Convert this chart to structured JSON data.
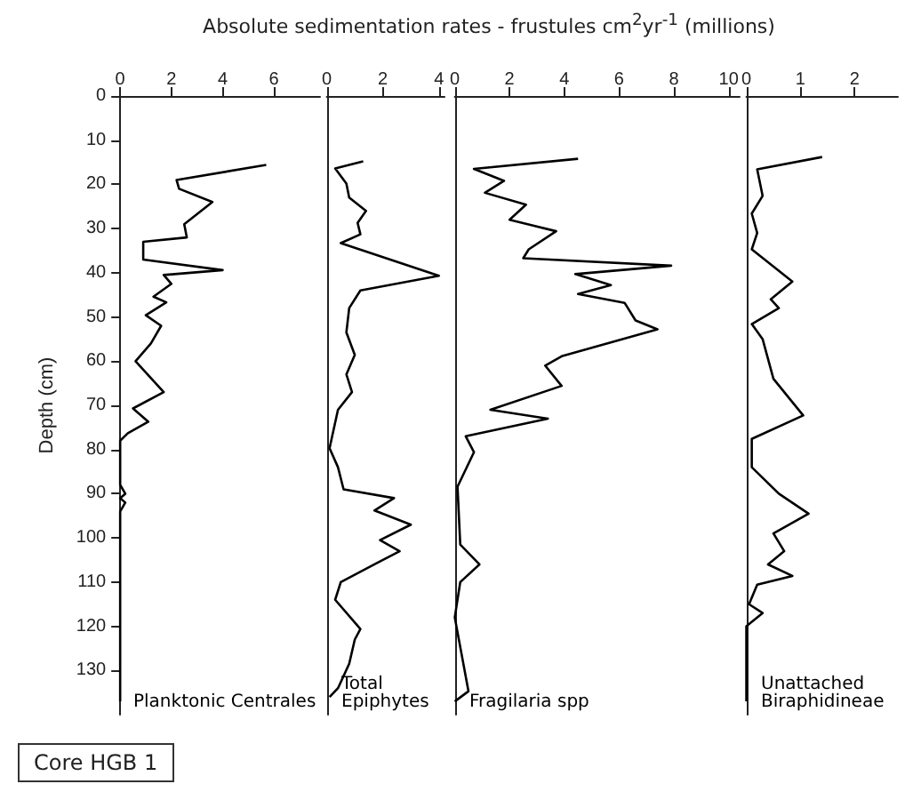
{
  "chart_data": [
    {
      "type": "line",
      "title": "Absolute sedimentation rates - frustules cm$^{2}$yr$^{-1}$ (millions)",
      "ylabel": "Depth (cm)",
      "annotations": [
        "Core HGB 1"
      ],
      "xlim": [
        0,
        7.8
      ],
      "xticks": [
        0,
        2,
        4,
        6
      ],
      "ylim": [
        140,
        0
      ],
      "yticks": [
        0,
        10,
        20,
        30,
        40,
        50,
        60,
        70,
        80,
        90,
        100,
        110,
        120,
        130
      ],
      "grid": false,
      "line_style": "solid",
      "series": [
        {
          "name": "Planktonic Centrales",
          "color": "#000000",
          "x": [
            5.7,
            2.2,
            2.3,
            3.6,
            2.5,
            2.6,
            0.9,
            0.9,
            4.0,
            1.7,
            2.0,
            1.3,
            1.8,
            1.0,
            1.6,
            1.2,
            0.6,
            1.7,
            0.5,
            1.1,
            0.3,
            0,
            0,
            0.2,
            0,
            0.2,
            0,
            0
          ],
          "values": [
            15.6,
            19,
            21,
            24,
            29,
            32,
            33,
            37,
            39.4,
            40.5,
            42.5,
            45.4,
            46.7,
            49.6,
            52,
            56,
            60,
            67,
            70.7,
            73.7,
            76.3,
            78,
            88,
            90,
            91,
            92,
            94,
            137
          ]
        }
      ]
    },
    {
      "type": "line",
      "xlim": [
        0,
        4.2
      ],
      "xticks": [
        0,
        2,
        4
      ],
      "ylim": [
        140,
        0
      ],
      "tick_labels": "x",
      "grid": false,
      "line_style": "solid",
      "series": [
        {
          "name": "Total Epiphytes",
          "color": "#000000",
          "x": [
            1.3,
            0.3,
            0.7,
            0.8,
            1.4,
            1.1,
            1.2,
            0.5,
            4.0,
            1.2,
            0.8,
            0.7,
            1.0,
            0.7,
            0.9,
            0.4,
            0.1,
            0.4,
            0.6,
            2.4,
            1.7,
            3.0,
            1.9,
            2.6,
            1.7,
            0.5,
            0.3,
            1.2,
            1.0,
            0.8,
            0.4,
            0.1
          ],
          "values": [
            14.8,
            16.4,
            19.8,
            23,
            26,
            28.7,
            31.3,
            33.3,
            40.7,
            44,
            48,
            53.5,
            58.6,
            63,
            67,
            71,
            79.7,
            84,
            89,
            91,
            93.8,
            97,
            100.5,
            103,
            106,
            110,
            114,
            120.6,
            123,
            128.5,
            134,
            136
          ]
        }
      ]
    },
    {
      "type": "line",
      "xlim": [
        0,
        10.4
      ],
      "xticks": [
        0,
        2,
        4,
        6,
        8,
        10
      ],
      "ylim": [
        140,
        0
      ],
      "tick_labels": "x",
      "grid": false,
      "line_style": "solid",
      "series": [
        {
          "name": "Fragilaria spp",
          "color": "#000000",
          "x": [
            4.5,
            0.7,
            1.8,
            1.1,
            2.6,
            2.0,
            3.7,
            2.7,
            2.5,
            7.9,
            4.4,
            5.7,
            4.5,
            6.2,
            6.6,
            7.4,
            3.9,
            3.3,
            3.9,
            1.3,
            3.4,
            0.4,
            0.7,
            0.1,
            0.2,
            0.9,
            0.2,
            0,
            0.5,
            0
          ],
          "values": [
            14.2,
            16.5,
            19.2,
            21.9,
            24.6,
            28,
            30.6,
            34.7,
            36.7,
            38.4,
            40.3,
            42.8,
            44.8,
            46.8,
            50.8,
            52.8,
            58.9,
            61,
            65.6,
            71,
            73,
            77,
            80.6,
            88.4,
            101.5,
            106,
            110,
            118,
            134.7,
            137
          ]
        }
      ]
    },
    {
      "type": "line",
      "xlim": [
        0,
        2.8
      ],
      "xticks": [
        0,
        1,
        2
      ],
      "ylim": [
        140,
        0
      ],
      "tick_labels": "x",
      "grid": false,
      "line_style": "solid",
      "series": [
        {
          "name": "Unattached Biraphidineae",
          "color": "#000000",
          "x": [
            1.4,
            0.2,
            0.3,
            0.1,
            0.2,
            0.1,
            0.85,
            0.45,
            0.6,
            0.1,
            0.3,
            0.5,
            1.05,
            0.1,
            0.1,
            0.6,
            1.15,
            0.5,
            0.7,
            0.4,
            0.85,
            0.2,
            0.05,
            0.3,
            0,
            0
          ],
          "values": [
            13.8,
            16.6,
            22.6,
            26.6,
            31,
            34.7,
            42,
            46,
            48,
            51.6,
            55,
            64,
            72.3,
            77.6,
            84,
            90,
            94.5,
            99,
            103,
            106,
            108.6,
            110.6,
            115,
            117,
            120,
            137
          ]
        }
      ]
    }
  ]
}
